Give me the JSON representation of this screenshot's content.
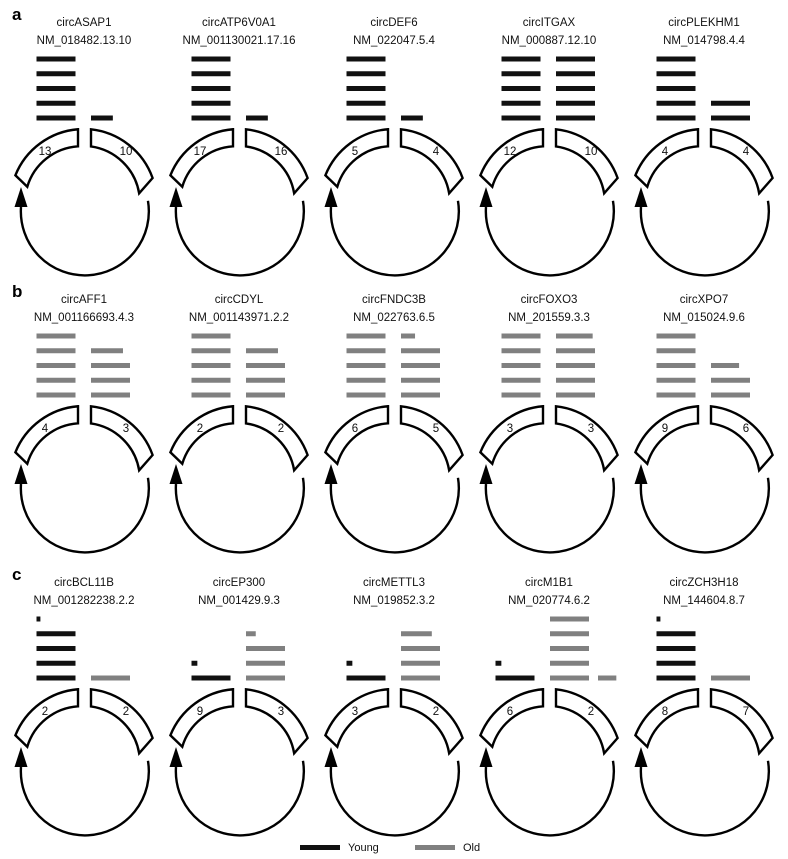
{
  "colors": {
    "young": "#111111",
    "old": "#808080",
    "outline": "#000000"
  },
  "legend": [
    {
      "label": "Young",
      "group": "young"
    },
    {
      "label": "Old",
      "group": "old"
    }
  ],
  "rows": [
    {
      "letter": "a",
      "panels": [
        {
          "name": "circASAP1",
          "transcript": "NM_018482.13.10",
          "left_count": "13",
          "right_count": "10",
          "columns": [
            [
              {
                "w": 1,
                "g": "young"
              },
              {
                "w": 1,
                "g": "young"
              },
              {
                "w": 1,
                "g": "young"
              },
              {
                "w": 1,
                "g": "young"
              },
              {
                "w": 1,
                "g": "young"
              }
            ],
            [
              {
                "w": 0.56,
                "g": "young"
              }
            ]
          ]
        },
        {
          "name": "circATP6V0A1",
          "transcript": "NM_001130021.17.16",
          "left_count": "17",
          "right_count": "16",
          "columns": [
            [
              {
                "w": 1,
                "g": "young"
              },
              {
                "w": 1,
                "g": "young"
              },
              {
                "w": 1,
                "g": "young"
              },
              {
                "w": 1,
                "g": "young"
              },
              {
                "w": 1,
                "g": "young"
              }
            ],
            [
              {
                "w": 0.56,
                "g": "young"
              }
            ]
          ]
        },
        {
          "name": "circDEF6",
          "transcript": "NM_022047.5.4",
          "left_count": "5",
          "right_count": "4",
          "columns": [
            [
              {
                "w": 1,
                "g": "young"
              },
              {
                "w": 1,
                "g": "young"
              },
              {
                "w": 1,
                "g": "young"
              },
              {
                "w": 1,
                "g": "young"
              },
              {
                "w": 1,
                "g": "young"
              }
            ],
            [
              {
                "w": 0.56,
                "g": "young"
              }
            ]
          ]
        },
        {
          "name": "circITGAX",
          "transcript": "NM_000887.12.10",
          "left_count": "12",
          "right_count": "10",
          "columns": [
            [
              {
                "w": 1,
                "g": "young"
              },
              {
                "w": 1,
                "g": "young"
              },
              {
                "w": 1,
                "g": "young"
              },
              {
                "w": 1,
                "g": "young"
              },
              {
                "w": 1,
                "g": "young"
              }
            ],
            [
              {
                "w": 1,
                "g": "young"
              },
              {
                "w": 1,
                "g": "young"
              },
              {
                "w": 1,
                "g": "young"
              },
              {
                "w": 1,
                "g": "young"
              },
              {
                "w": 1,
                "g": "young"
              }
            ]
          ]
        },
        {
          "name": "circPLEKHM1",
          "transcript": "NM_014798.4.4",
          "left_count": "4",
          "right_count": "4",
          "columns": [
            [
              {
                "w": 1,
                "g": "young"
              },
              {
                "w": 1,
                "g": "young"
              },
              {
                "w": 1,
                "g": "young"
              },
              {
                "w": 1,
                "g": "young"
              },
              {
                "w": 1,
                "g": "young"
              }
            ],
            [
              {
                "w": 1,
                "g": "young"
              },
              {
                "w": 1,
                "g": "young"
              }
            ]
          ]
        }
      ]
    },
    {
      "letter": "b",
      "panels": [
        {
          "name": "circAFF1",
          "transcript": "NM_001166693.4.3",
          "left_count": "4",
          "right_count": "3",
          "columns": [
            [
              {
                "w": 1,
                "g": "old"
              },
              {
                "w": 1,
                "g": "old"
              },
              {
                "w": 1,
                "g": "old"
              },
              {
                "w": 1,
                "g": "old"
              },
              {
                "w": 1,
                "g": "old"
              }
            ],
            [
              {
                "w": 1,
                "g": "old"
              },
              {
                "w": 1,
                "g": "old"
              },
              {
                "w": 1,
                "g": "old"
              },
              {
                "w": 0.82,
                "g": "old"
              }
            ]
          ]
        },
        {
          "name": "circCDYL",
          "transcript": "NM_001143971.2.2",
          "left_count": "2",
          "right_count": "2",
          "columns": [
            [
              {
                "w": 1,
                "g": "old"
              },
              {
                "w": 1,
                "g": "old"
              },
              {
                "w": 1,
                "g": "old"
              },
              {
                "w": 1,
                "g": "old"
              },
              {
                "w": 1,
                "g": "old"
              }
            ],
            [
              {
                "w": 1,
                "g": "old"
              },
              {
                "w": 1,
                "g": "old"
              },
              {
                "w": 1,
                "g": "old"
              },
              {
                "w": 0.82,
                "g": "old"
              }
            ]
          ]
        },
        {
          "name": "circFNDC3B",
          "transcript": "NM_022763.6.5",
          "left_count": "6",
          "right_count": "5",
          "columns": [
            [
              {
                "w": 1,
                "g": "old"
              },
              {
                "w": 1,
                "g": "old"
              },
              {
                "w": 1,
                "g": "old"
              },
              {
                "w": 1,
                "g": "old"
              },
              {
                "w": 1,
                "g": "old"
              }
            ],
            [
              {
                "w": 1,
                "g": "old"
              },
              {
                "w": 1,
                "g": "old"
              },
              {
                "w": 1,
                "g": "old"
              },
              {
                "w": 1,
                "g": "old"
              },
              {
                "w": 0.36,
                "g": "old"
              }
            ]
          ]
        },
        {
          "name": "circFOXO3",
          "transcript": "NM_201559.3.3",
          "left_count": "3",
          "right_count": "3",
          "columns": [
            [
              {
                "w": 1,
                "g": "old"
              },
              {
                "w": 1,
                "g": "old"
              },
              {
                "w": 1,
                "g": "old"
              },
              {
                "w": 1,
                "g": "old"
              },
              {
                "w": 1,
                "g": "old"
              }
            ],
            [
              {
                "w": 1,
                "g": "old"
              },
              {
                "w": 1,
                "g": "old"
              },
              {
                "w": 1,
                "g": "old"
              },
              {
                "w": 1,
                "g": "old"
              },
              {
                "w": 0.94,
                "g": "old"
              }
            ]
          ]
        },
        {
          "name": "circXPO7",
          "transcript": "NM_015024.9.6",
          "left_count": "9",
          "right_count": "6",
          "columns": [
            [
              {
                "w": 1,
                "g": "old"
              },
              {
                "w": 1,
                "g": "old"
              },
              {
                "w": 1,
                "g": "old"
              },
              {
                "w": 1,
                "g": "old"
              },
              {
                "w": 1,
                "g": "old"
              }
            ],
            [
              {
                "w": 1,
                "g": "old"
              },
              {
                "w": 1,
                "g": "old"
              },
              {
                "w": 0.72,
                "g": "old"
              }
            ]
          ]
        }
      ]
    },
    {
      "letter": "c",
      "panels": [
        {
          "name": "circBCL11B",
          "transcript": "NM_001282238.2.2",
          "left_count": "2",
          "right_count": "2",
          "columns": [
            [
              {
                "w": 1,
                "g": "young"
              },
              {
                "w": 1,
                "g": "young"
              },
              {
                "w": 1,
                "g": "young"
              },
              {
                "w": 1,
                "g": "young"
              },
              {
                "w": 0.1,
                "g": "young"
              }
            ],
            [
              {
                "w": 1,
                "g": "old"
              }
            ]
          ]
        },
        {
          "name": "circEP300",
          "transcript": "NM_001429.9.3",
          "left_count": "9",
          "right_count": "3",
          "columns": [
            [
              {
                "w": 1,
                "g": "young"
              },
              {
                "w": 0.15,
                "g": "young"
              }
            ],
            [
              {
                "w": 1,
                "g": "old"
              },
              {
                "w": 1,
                "g": "old"
              },
              {
                "w": 1,
                "g": "old"
              },
              {
                "w": 0.25,
                "g": "old"
              }
            ]
          ]
        },
        {
          "name": "circMETTL3",
          "transcript": "NM_019852.3.2",
          "left_count": "3",
          "right_count": "2",
          "columns": [
            [
              {
                "w": 1,
                "g": "young"
              },
              {
                "w": 0.15,
                "g": "young"
              }
            ],
            [
              {
                "w": 1,
                "g": "old"
              },
              {
                "w": 1,
                "g": "old"
              },
              {
                "w": 1,
                "g": "old"
              },
              {
                "w": 0.79,
                "g": "old"
              }
            ]
          ]
        },
        {
          "name": "circM1B1",
          "transcript": "NM_020774.6.2",
          "left_count": "6",
          "right_count": "2",
          "columns": [
            [
              {
                "w": 1,
                "g": "young"
              },
              {
                "w": 0.15,
                "g": "young"
              }
            ],
            [
              {
                "w": 1,
                "g": "old"
              },
              {
                "w": 1,
                "g": "old"
              },
              {
                "w": 1,
                "g": "old"
              },
              {
                "w": 1,
                "g": "old"
              },
              {
                "w": 1,
                "g": "old"
              }
            ],
            [
              {
                "w": 0.47,
                "g": "old"
              }
            ]
          ]
        },
        {
          "name": "circZCH3H18",
          "transcript": "NM_144604.8.7",
          "left_count": "8",
          "right_count": "7",
          "columns": [
            [
              {
                "w": 1,
                "g": "young"
              },
              {
                "w": 1,
                "g": "young"
              },
              {
                "w": 1,
                "g": "young"
              },
              {
                "w": 1,
                "g": "young"
              },
              {
                "w": 0.1,
                "g": "young"
              }
            ],
            [
              {
                "w": 1,
                "g": "old"
              }
            ]
          ]
        }
      ]
    }
  ]
}
